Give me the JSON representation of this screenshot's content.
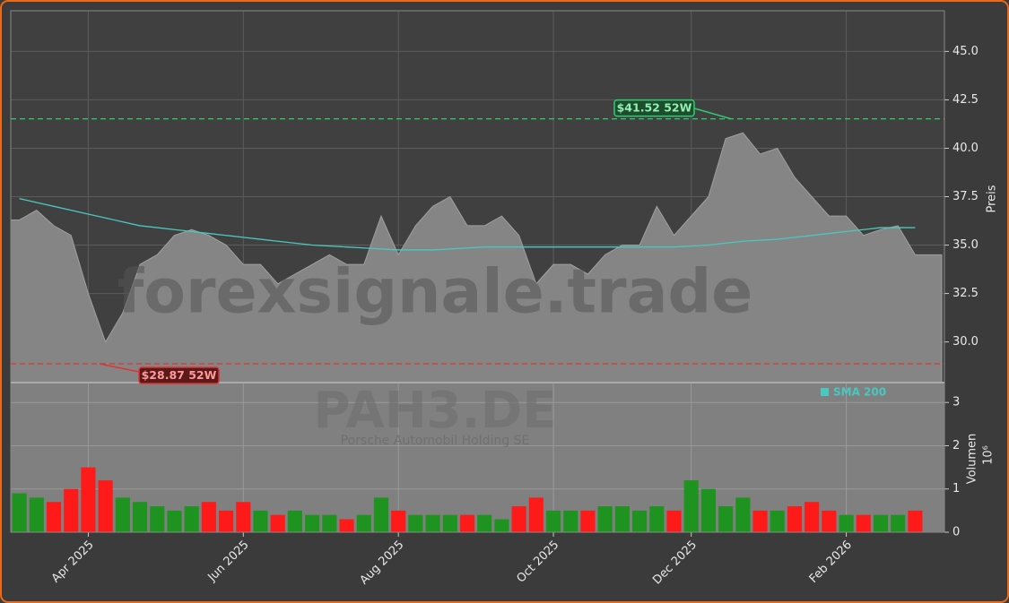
{
  "watermark": "forexsignale.trade",
  "symbol": "PAH3.DE",
  "company": "Porsche Automobil Holding SE",
  "chart_data": [
    {
      "type": "area",
      "ylabel": "Preis",
      "grid": true,
      "legend": "upper right",
      "ylim": [
        27.9,
        47.1
      ],
      "yticks": [
        {
          "value": 30,
          "label": "30.0"
        },
        {
          "value": 32.5,
          "label": "32.5"
        },
        {
          "value": 35,
          "label": "35.0"
        },
        {
          "value": 37.5,
          "label": "37.5"
        },
        {
          "value": 40,
          "label": "40.0"
        },
        {
          "value": 42.5,
          "label": "42.5"
        },
        {
          "value": 45,
          "label": "45.0"
        }
      ],
      "series": [
        {
          "color": "#858585",
          "values": [
            36.3,
            36.8,
            36.0,
            35.5,
            32.5,
            30.0,
            31.5,
            34.0,
            34.5,
            35.5,
            35.8,
            35.5,
            35.0,
            34.0,
            34.0,
            33.0,
            33.5,
            34.0,
            34.5,
            34.0,
            34.0,
            36.5,
            34.5,
            36.0,
            37.0,
            37.5,
            36.0,
            36.0,
            36.5,
            35.5,
            33.0,
            34.0,
            34.0,
            33.5,
            34.5,
            35.0,
            35.0,
            37.0,
            35.5,
            36.5,
            37.5,
            40.5,
            40.8,
            39.7,
            40.0,
            38.5,
            37.5,
            36.5,
            36.5,
            35.5,
            35.8,
            36.0,
            34.5
          ]
        },
        {
          "name": "SMA 200",
          "type": "line",
          "color": "#48c9c0",
          "values": [
            37.4,
            37.2,
            37.0,
            36.8,
            36.6,
            36.4,
            36.2,
            36.0,
            35.9,
            35.8,
            35.7,
            35.6,
            35.5,
            35.4,
            35.3,
            35.2,
            35.1,
            35.0,
            34.95,
            34.9,
            34.85,
            34.8,
            34.75,
            34.75,
            34.75,
            34.8,
            34.85,
            34.9,
            34.9,
            34.9,
            34.9,
            34.9,
            34.9,
            34.9,
            34.9,
            34.9,
            34.9,
            34.9,
            34.9,
            34.95,
            35.0,
            35.1,
            35.2,
            35.25,
            35.3,
            35.4,
            35.5,
            35.6,
            35.7,
            35.8,
            35.9,
            35.9,
            35.9
          ]
        }
      ],
      "annotations": [
        {
          "value": 41.52,
          "label": "$41.52 52W",
          "color": "#2ecc71"
        },
        {
          "value": 28.87,
          "label": "$28.87 52W",
          "color": "#e03333"
        }
      ]
    },
    {
      "type": "bar",
      "ylabel": "Volumen",
      "ylabel_unit": "10⁶",
      "grid": true,
      "up_color": "#1f931f",
      "down_color": "#ff1a1a",
      "ylim": [
        0,
        3.46
      ],
      "yticks": [
        0,
        1,
        2,
        3
      ],
      "categories": [
        null,
        null,
        null,
        null,
        "Apr 2025",
        null,
        null,
        null,
        null,
        null,
        null,
        null,
        null,
        "Jun 2025",
        null,
        null,
        null,
        null,
        null,
        null,
        null,
        null,
        "Aug 2025",
        null,
        null,
        null,
        null,
        null,
        null,
        null,
        null,
        "Oct 2025",
        null,
        null,
        null,
        null,
        null,
        null,
        null,
        "Dec 2025",
        null,
        null,
        null,
        null,
        null,
        null,
        null,
        null,
        "Feb 2026",
        null,
        null,
        null,
        null
      ],
      "values": [
        0.9,
        0.8,
        0.7,
        1.0,
        1.5,
        1.2,
        0.8,
        0.7,
        0.6,
        0.5,
        0.6,
        0.7,
        0.5,
        0.7,
        0.5,
        0.4,
        0.5,
        0.4,
        0.4,
        0.3,
        0.4,
        0.8,
        0.5,
        0.4,
        0.4,
        0.4,
        0.4,
        0.4,
        0.3,
        0.6,
        0.8,
        0.5,
        0.5,
        0.5,
        0.6,
        0.6,
        0.5,
        0.6,
        0.5,
        1.2,
        1.0,
        0.6,
        0.8,
        0.5,
        0.5,
        0.6,
        0.7,
        0.5,
        0.4,
        0.4,
        0.4,
        0.4,
        0.5
      ]
    }
  ]
}
